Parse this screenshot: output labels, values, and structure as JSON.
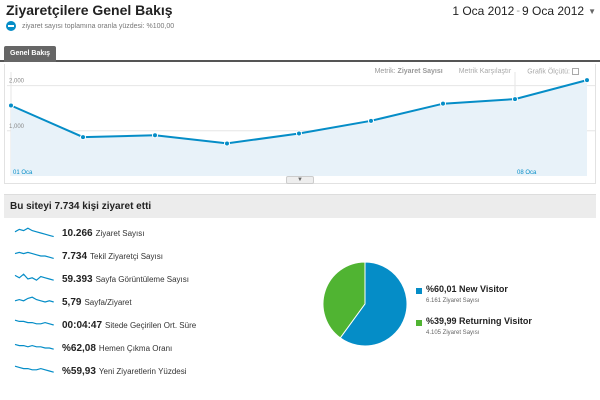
{
  "header": {
    "title": "Ziyaretçilere Genel Bakış",
    "segment_label": "ziyaret sayısı toplamına oranla yüzdesi: %100,00",
    "date_start": "1 Oca 2012",
    "date_sep": "-",
    "date_end": "9 Oca 2012"
  },
  "tabs": [
    {
      "label": "Genel Bakış",
      "active": true
    }
  ],
  "chart_options": {
    "metric_label": "Metrik:",
    "metric_value": "Ziyaret Sayısı",
    "compare_label": "Metrik Karşılaştır",
    "graph_label": "Grafik Ölçütü:"
  },
  "chart_data": {
    "type": "area",
    "title": "",
    "xlabel": "",
    "ylabel": "",
    "x_tick_labels": [
      "01 Oca",
      "08 Oca"
    ],
    "y_tick_labels": [
      "1,000",
      "2,000"
    ],
    "x": [
      "01 Oca",
      "02 Oca",
      "03 Oca",
      "04 Oca",
      "05 Oca",
      "06 Oca",
      "07 Oca",
      "08 Oca",
      "09 Oca"
    ],
    "series": [
      {
        "values": [
          1560,
          860,
          900,
          720,
          940,
          1220,
          1600,
          1700,
          2120
        ]
      }
    ],
    "ylim": [
      0,
      2300
    ],
    "grid": true,
    "color": "#058dc7",
    "fill": "#e8f2f9"
  },
  "summary": {
    "heading": "Bu siteyi 7.734 kişi ziyaret etti"
  },
  "metrics": [
    {
      "value": "10.266",
      "label": "Ziyaret Sayısı"
    },
    {
      "value": "7.734",
      "label": "Tekil Ziyaretçi Sayısı"
    },
    {
      "value": "59.393",
      "label": "Sayfa Görüntüleme Sayısı"
    },
    {
      "value": "5,79",
      "label": "Sayfa/Ziyaret"
    },
    {
      "value": "00:04:47",
      "label": "Sitede Geçirilen Ort. Süre"
    },
    {
      "value": "%62,08",
      "label": "Hemen Çıkma Oranı"
    },
    {
      "value": "%59,93",
      "label": "Yeni Ziyaretlerin Yüzdesi"
    }
  ],
  "pie": {
    "slices": [
      {
        "pct": "%60,01",
        "name": "New Visitor",
        "sub": "6.161 Ziyaret Sayısı",
        "value": 60.01,
        "color": "#058dc7"
      },
      {
        "pct": "%39,99",
        "name": "Returning Visitor",
        "sub": "4.105 Ziyaret Sayısı",
        "value": 39.99,
        "color": "#50b432"
      }
    ]
  },
  "colors": {
    "accent": "#058dc7",
    "green": "#50b432"
  }
}
